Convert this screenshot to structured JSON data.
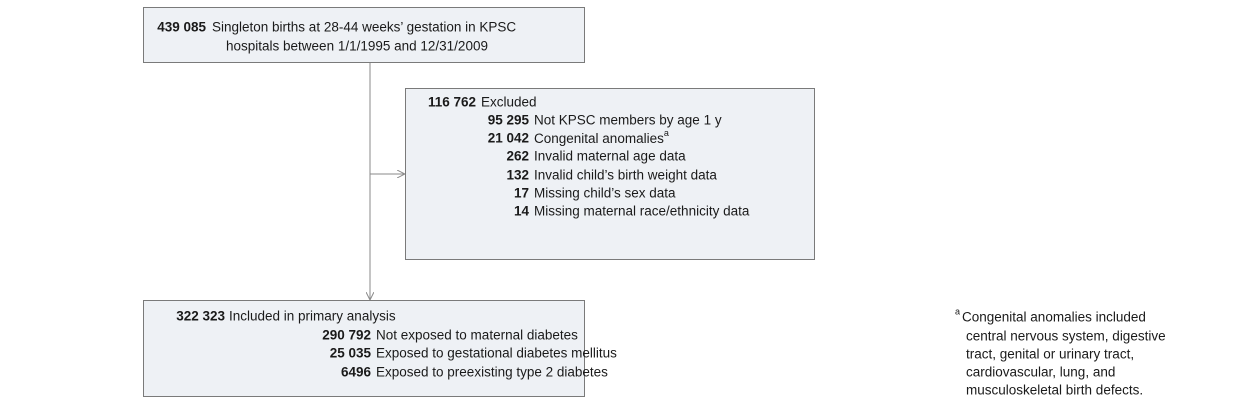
{
  "boxes": [
    {
      "rows": [
        {
          "count": "439 085",
          "text": "Singleton births at 28-44 weeks’ gestation in KPSC"
        },
        {
          "text": "hospitals between 1/1/1995 and 12/31/2009"
        }
      ]
    },
    {
      "rows": [
        {
          "count": "116 762",
          "text": "Excluded"
        },
        {
          "count": "95 295",
          "text": "Not KPSC members by age 1 y"
        },
        {
          "count": "21 042",
          "text": "Congenital anomalies",
          "sup": "a"
        },
        {
          "count": "262",
          "text": "Invalid maternal age data"
        },
        {
          "count": "132",
          "text": "Invalid child’s birth weight data"
        },
        {
          "count": "17",
          "text": "Missing child’s sex data"
        },
        {
          "count": "14",
          "text": "Missing maternal race/ethnicity data"
        }
      ]
    },
    {
      "rows": [
        {
          "count": "322 323",
          "text": "Included in primary analysis"
        },
        {
          "count": "290 792",
          "text": "Not exposed to maternal diabetes"
        },
        {
          "count": "25 035",
          "text": "Exposed to gestational diabetes mellitus"
        },
        {
          "count": "6496",
          "text": "Exposed to preexisting type 2 diabetes"
        }
      ]
    }
  ],
  "footnote": {
    "marker": "a",
    "lines": [
      "Congenital anomalies included",
      "central nervous system, digestive",
      "tract, genital or urinary tract,",
      "cardiovascular, lung, and",
      "musculoskeletal birth defects."
    ]
  }
}
